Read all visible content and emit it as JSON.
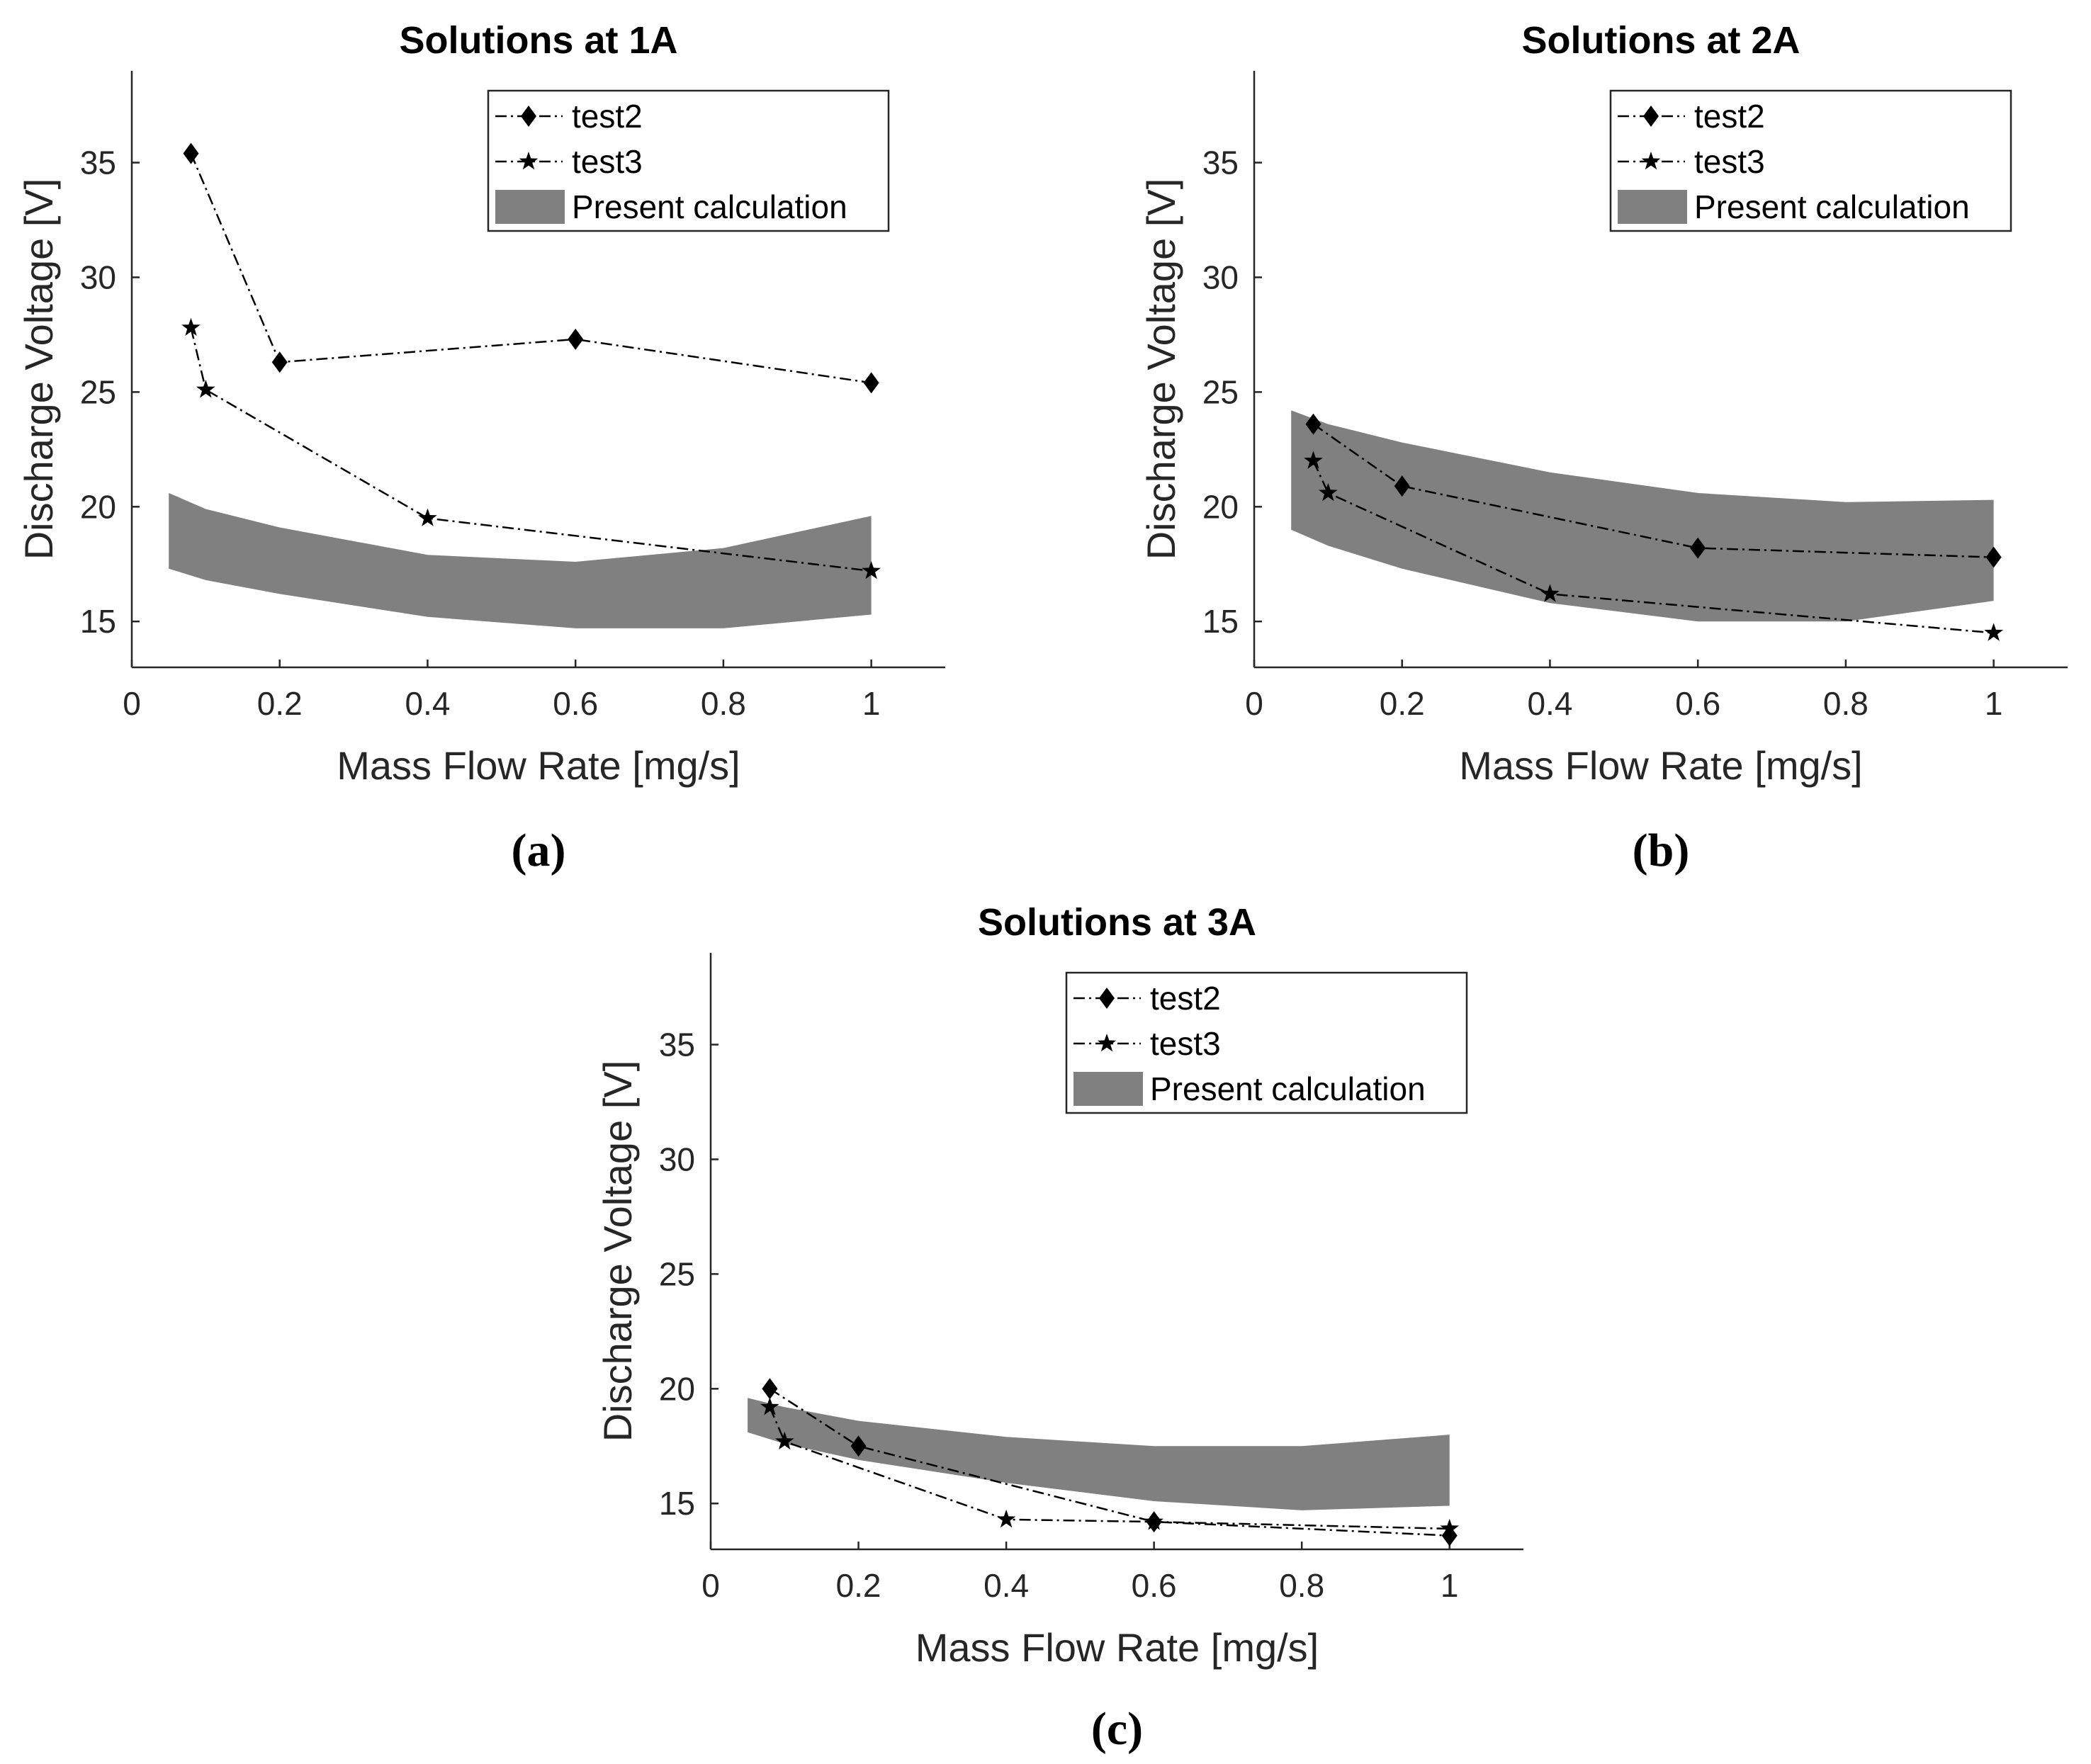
{
  "chart_data": [
    {
      "type": "line",
      "title": "Solutions at 1A",
      "caption": "(a)",
      "xlabel": "Mass Flow Rate [mg/s]",
      "ylabel": "Discharge Voltage [V]",
      "xlim": [
        0,
        1.1
      ],
      "ylim": [
        13,
        39
      ],
      "xticks": [
        0,
        0.2,
        0.4,
        0.6,
        0.8,
        1
      ],
      "xtick_labels": [
        "0",
        "0.2",
        "0.4",
        "0.6",
        "0.8",
        "1"
      ],
      "yticks": [
        15,
        20,
        25,
        30,
        35
      ],
      "ytick_labels": [
        "15",
        "20",
        "25",
        "30",
        "35"
      ],
      "legend_position": "top-right",
      "series": [
        {
          "name": "test2",
          "marker": "diamond",
          "x": [
            0.08,
            0.2,
            0.6,
            1.0
          ],
          "y": [
            35.4,
            26.3,
            27.3,
            25.4
          ]
        },
        {
          "name": "test3",
          "marker": "star",
          "x": [
            0.08,
            0.1,
            0.4,
            1.0
          ],
          "y": [
            27.8,
            25.1,
            19.5,
            17.2
          ]
        }
      ],
      "band": {
        "name": "Present calculation",
        "x": [
          0.05,
          0.1,
          0.2,
          0.4,
          0.6,
          0.8,
          1.0
        ],
        "upper": [
          20.6,
          19.9,
          19.1,
          17.9,
          17.6,
          18.2,
          19.6
        ],
        "lower": [
          17.3,
          16.8,
          16.2,
          15.2,
          14.7,
          14.7,
          15.3
        ]
      }
    },
    {
      "type": "line",
      "title": "Solutions at 2A",
      "caption": "(b)",
      "xlabel": "Mass Flow Rate [mg/s]",
      "ylabel": "Discharge Voltage [V]",
      "xlim": [
        0,
        1.1
      ],
      "ylim": [
        13,
        39
      ],
      "xticks": [
        0,
        0.2,
        0.4,
        0.6,
        0.8,
        1
      ],
      "xtick_labels": [
        "0",
        "0.2",
        "0.4",
        "0.6",
        "0.8",
        "1"
      ],
      "yticks": [
        15,
        20,
        25,
        30,
        35
      ],
      "ytick_labels": [
        "15",
        "20",
        "25",
        "30",
        "35"
      ],
      "legend_position": "top-right",
      "series": [
        {
          "name": "test2",
          "marker": "diamond",
          "x": [
            0.08,
            0.2,
            0.6,
            1.0
          ],
          "y": [
            23.6,
            20.9,
            18.2,
            17.8
          ]
        },
        {
          "name": "test3",
          "marker": "star",
          "x": [
            0.08,
            0.1,
            0.4,
            1.0
          ],
          "y": [
            22.0,
            20.6,
            16.2,
            14.5
          ]
        }
      ],
      "band": {
        "name": "Present calculation",
        "x": [
          0.05,
          0.1,
          0.2,
          0.4,
          0.6,
          0.8,
          1.0
        ],
        "upper": [
          24.2,
          23.6,
          22.8,
          21.5,
          20.6,
          20.2,
          20.3
        ],
        "lower": [
          19.0,
          18.3,
          17.3,
          15.8,
          15.0,
          15.0,
          15.9
        ]
      }
    },
    {
      "type": "line",
      "title": "Solutions at 3A",
      "caption": "(c)",
      "xlabel": "Mass Flow Rate [mg/s]",
      "ylabel": "Discharge Voltage [V]",
      "xlim": [
        0,
        1.1
      ],
      "ylim": [
        13,
        39
      ],
      "xticks": [
        0,
        0.2,
        0.4,
        0.6,
        0.8,
        1
      ],
      "xtick_labels": [
        "0",
        "0.2",
        "0.4",
        "0.6",
        "0.8",
        "1"
      ],
      "yticks": [
        15,
        20,
        25,
        30,
        35
      ],
      "ytick_labels": [
        "15",
        "20",
        "25",
        "30",
        "35"
      ],
      "legend_position": "top-right",
      "series": [
        {
          "name": "test2",
          "marker": "diamond",
          "x": [
            0.08,
            0.2,
            0.6,
            1.0
          ],
          "y": [
            20.0,
            17.5,
            14.2,
            13.6
          ]
        },
        {
          "name": "test3",
          "marker": "star",
          "x": [
            0.08,
            0.1,
            0.4,
            0.6,
            1.0
          ],
          "y": [
            19.2,
            17.7,
            14.3,
            14.2,
            13.9
          ]
        }
      ],
      "band": {
        "name": "Present calculation",
        "x": [
          0.05,
          0.1,
          0.2,
          0.4,
          0.6,
          0.8,
          1.0
        ],
        "upper": [
          19.6,
          19.2,
          18.6,
          17.9,
          17.5,
          17.5,
          18.0
        ],
        "lower": [
          18.1,
          17.6,
          16.9,
          15.9,
          15.1,
          14.7,
          14.9
        ]
      }
    }
  ],
  "colors": {
    "band": "#808080",
    "axis": "#262626",
    "marker": "#000000"
  }
}
